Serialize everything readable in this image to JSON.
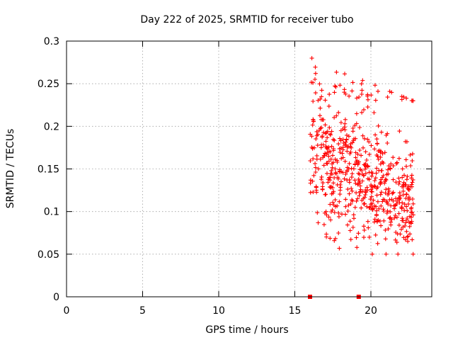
{
  "chart_data": {
    "type": "scatter",
    "title": "Day 222 of 2025, SRMTID for receiver tubo",
    "xlabel": "GPS time / hours",
    "ylabel": "SRMTID / TECUs",
    "xlim": [
      0,
      24
    ],
    "ylim": [
      0,
      0.3
    ],
    "x_ticks": [
      0,
      5,
      10,
      15,
      20
    ],
    "y_ticks": [
      0,
      0.05,
      0.1,
      0.15,
      0.2,
      0.25,
      0.3
    ],
    "x_tick_labels": [
      "0",
      "5",
      "10",
      "15",
      "20"
    ],
    "y_tick_labels": [
      "0",
      "0.05",
      "0.1",
      "0.15",
      "0.2",
      "0.25",
      "0.3"
    ],
    "grid": true,
    "marker": "+",
    "color": "#ff0000",
    "series": [
      {
        "name": "SRMTID",
        "x_range": [
          16.0,
          22.8
        ],
        "y_range": [
          0.05,
          0.28
        ],
        "point_count": 620,
        "note": "dense scatter cloud, approximate"
      }
    ],
    "gap_markers": {
      "y": 0,
      "x": [
        16.0,
        19.2
      ],
      "color": "#ff0000"
    }
  }
}
